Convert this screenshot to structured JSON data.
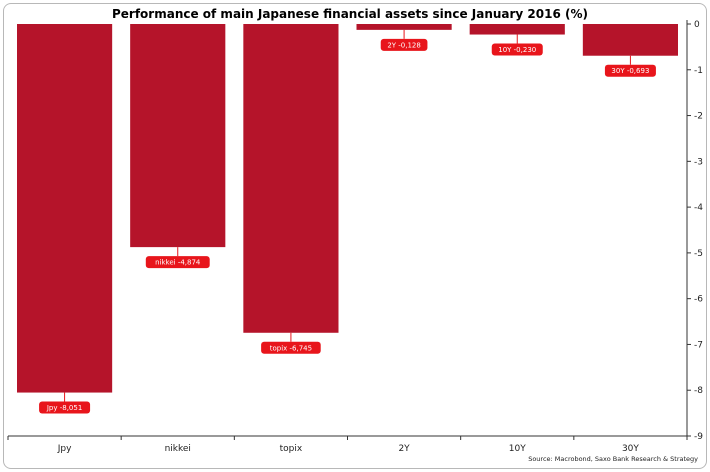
{
  "chart_data": {
    "type": "bar",
    "title": "Performance of main Japanese financial assets since January 2016 (%)",
    "xlabel": "",
    "ylabel": "",
    "categories": [
      "Jpy",
      "nikkei",
      "topix",
      "2Y",
      "10Y",
      "30Y"
    ],
    "values": [
      -8.051,
      -4.874,
      -6.745,
      -0.128,
      -0.23,
      -0.693
    ],
    "data_labels": [
      "Jpy -8,051",
      "nikkei -4,874",
      "topix -6,745",
      "2Y -0,128",
      "10Y -0,230",
      "30Y -0,693"
    ],
    "ylim": [
      -9,
      0
    ],
    "yticks": [
      0,
      -1,
      -2,
      -3,
      -4,
      -5,
      -6,
      -7,
      -8,
      -9
    ],
    "ytick_labels": [
      "0",
      "-1",
      "-2",
      "-3",
      "-4",
      "-5",
      "-6",
      "-7",
      "-8",
      "-9"
    ],
    "y_axis_side": "right",
    "grid": false,
    "legend": "none",
    "bar_color": "#b5142a",
    "label_color": "#e8151b",
    "source": "Source: Macrobond, Saxo Bank Research & Strategy"
  }
}
